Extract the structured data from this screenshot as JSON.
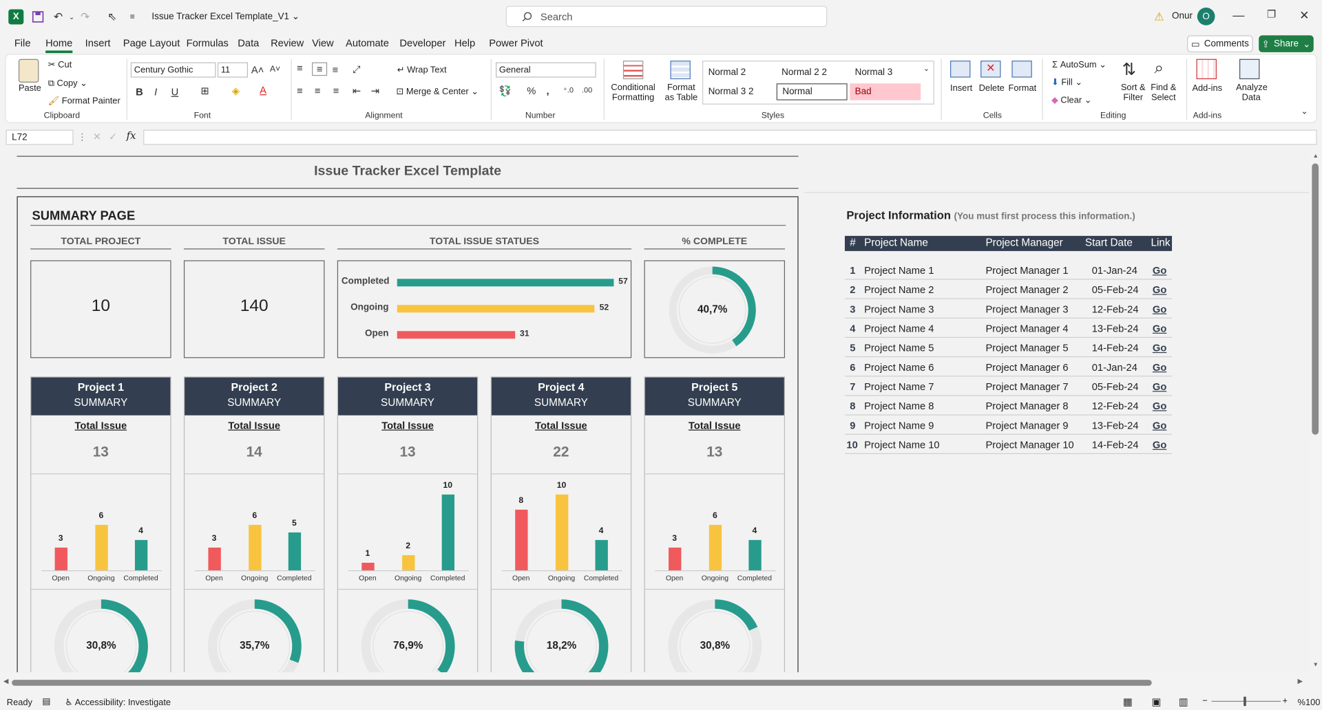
{
  "titlebar": {
    "file_title": "Issue Tracker Excel Template_V1",
    "search_placeholder": "Search",
    "user_name": "Onur",
    "user_initial": "O"
  },
  "menu": [
    "File",
    "Home",
    "Insert",
    "Page Layout",
    "Formulas",
    "Data",
    "Review",
    "View",
    "Automate",
    "Developer",
    "Help",
    "Power Pivot"
  ],
  "menu_active": "Home",
  "topbuttons": {
    "comments": "Comments",
    "share": "Share"
  },
  "ribbon": {
    "clipboard": {
      "paste": "Paste",
      "cut": "Cut",
      "copy": "Copy",
      "format_painter": "Format Painter",
      "label": "Clipboard"
    },
    "font": {
      "name": "Century Gothic",
      "size": "11",
      "label": "Font"
    },
    "alignment": {
      "wrap": "Wrap Text",
      "merge": "Merge & Center",
      "label": "Alignment"
    },
    "number": {
      "format": "General",
      "label": "Number"
    },
    "styles": {
      "conditional": "Conditional Formatting",
      "format_table": "Format as Table",
      "label": "Styles",
      "cells": [
        "Normal 2",
        "Normal 2 2",
        "Normal 3",
        "Normal 3 2",
        "Normal",
        "Bad"
      ]
    },
    "cells": {
      "insert": "Insert",
      "delete": "Delete",
      "format": "Format",
      "label": "Cells"
    },
    "editing": {
      "autosum": "AutoSum",
      "fill": "Fill",
      "clear": "Clear",
      "sort": "Sort & Filter",
      "find": "Find & Select",
      "label": "Editing"
    },
    "addins": {
      "addins": "Add-ins",
      "analyze": "Analyze Data",
      "label": "Add-ins"
    }
  },
  "formula_bar": {
    "name_box": "L72",
    "fx": "fx",
    "value": ""
  },
  "sheet": {
    "title": "Issue Tracker Excel Template",
    "summary_title": "SUMMARY PAGE",
    "kpis": {
      "total_project_label": "TOTAL PROJECT",
      "total_project": "10",
      "total_issue_label": "TOTAL ISSUE",
      "total_issue": "140",
      "statues_label": "TOTAL ISSUE STATUES",
      "complete_label": "% COMPLETE",
      "complete_pct": "40,7%",
      "complete_frac": 0.407
    },
    "project_summary_label": "SUMMARY",
    "total_issue_label": "Total Issue",
    "projects": [
      {
        "name": "Project 1",
        "total": "13",
        "pct": "30,8%"
      },
      {
        "name": "Project 2",
        "total": "14",
        "pct": "35,7%"
      },
      {
        "name": "Project 3",
        "total": "13",
        "pct": "76,9%"
      },
      {
        "name": "Project 4",
        "total": "22",
        "pct": "18,2%"
      },
      {
        "name": "Project 5",
        "total": "13",
        "pct": "30,8%"
      }
    ],
    "project_info": {
      "title": "Project Information",
      "subtitle": "(You must first process this information.)",
      "headers": [
        "#",
        "Project Name",
        "Project Manager",
        "Start Date",
        "Link"
      ],
      "rows": [
        [
          "1",
          "Project Name 1",
          "Project Manager 1",
          "01-Jan-24",
          "Go"
        ],
        [
          "2",
          "Project Name 2",
          "Project Manager 2",
          "05-Feb-24",
          "Go"
        ],
        [
          "3",
          "Project Name 3",
          "Project Manager 3",
          "12-Feb-24",
          "Go"
        ],
        [
          "4",
          "Project Name 4",
          "Project Manager 4",
          "13-Feb-24",
          "Go"
        ],
        [
          "5",
          "Project Name 5",
          "Project Manager 5",
          "14-Feb-24",
          "Go"
        ],
        [
          "6",
          "Project Name 6",
          "Project Manager 6",
          "01-Jan-24",
          "Go"
        ],
        [
          "7",
          "Project Name 7",
          "Project Manager 7",
          "05-Feb-24",
          "Go"
        ],
        [
          "8",
          "Project Name 8",
          "Project Manager 8",
          "12-Feb-24",
          "Go"
        ],
        [
          "9",
          "Project Name 9",
          "Project Manager 9",
          "13-Feb-24",
          "Go"
        ],
        [
          "10",
          "Project Name 10",
          "Project Manager 10",
          "14-Feb-24",
          "Go"
        ]
      ]
    }
  },
  "status": {
    "ready": "Ready",
    "accessibility": "Accessibility: Investigate",
    "zoom": "%100"
  },
  "colors": {
    "open": "#f05a5c",
    "ongoing": "#f8c440",
    "completed": "#279c8c",
    "header": "#333f50",
    "track": "#e7e7e7"
  },
  "chart_data": [
    {
      "type": "bar",
      "orientation": "horizontal",
      "title": "TOTAL ISSUE STATUES",
      "categories": [
        "Completed",
        "Ongoing",
        "Open"
      ],
      "values": [
        57,
        52,
        31
      ]
    },
    {
      "type": "bar",
      "title": "Project 1",
      "categories": [
        "Open",
        "Ongoing",
        "Completed"
      ],
      "values": [
        3,
        6,
        4
      ]
    },
    {
      "type": "bar",
      "title": "Project 2",
      "categories": [
        "Open",
        "Ongoing",
        "Completed"
      ],
      "values": [
        3,
        6,
        5
      ]
    },
    {
      "type": "bar",
      "title": "Project 3",
      "categories": [
        "Open",
        "Ongoing",
        "Completed"
      ],
      "values": [
        1,
        2,
        10
      ]
    },
    {
      "type": "bar",
      "title": "Project 4",
      "categories": [
        "Open",
        "Ongoing",
        "Completed"
      ],
      "values": [
        8,
        10,
        4
      ]
    },
    {
      "type": "bar",
      "title": "Project 5",
      "categories": [
        "Open",
        "Ongoing",
        "Completed"
      ],
      "values": [
        3,
        6,
        4
      ]
    },
    {
      "type": "pie",
      "title": "% COMPLETE",
      "values": [
        0.407,
        0.593
      ]
    },
    {
      "type": "pie",
      "title": "Project 1 % complete",
      "values": [
        0.308,
        0.692
      ]
    },
    {
      "type": "pie",
      "title": "Project 2 % complete",
      "values": [
        0.357,
        0.643
      ]
    },
    {
      "type": "pie",
      "title": "Project 3 % complete",
      "values": [
        0.769,
        0.231
      ]
    },
    {
      "type": "pie",
      "title": "Project 4 % complete",
      "values": [
        0.182,
        0.818
      ]
    },
    {
      "type": "pie",
      "title": "Project 5 % complete",
      "values": [
        0.308,
        0.692
      ]
    }
  ]
}
